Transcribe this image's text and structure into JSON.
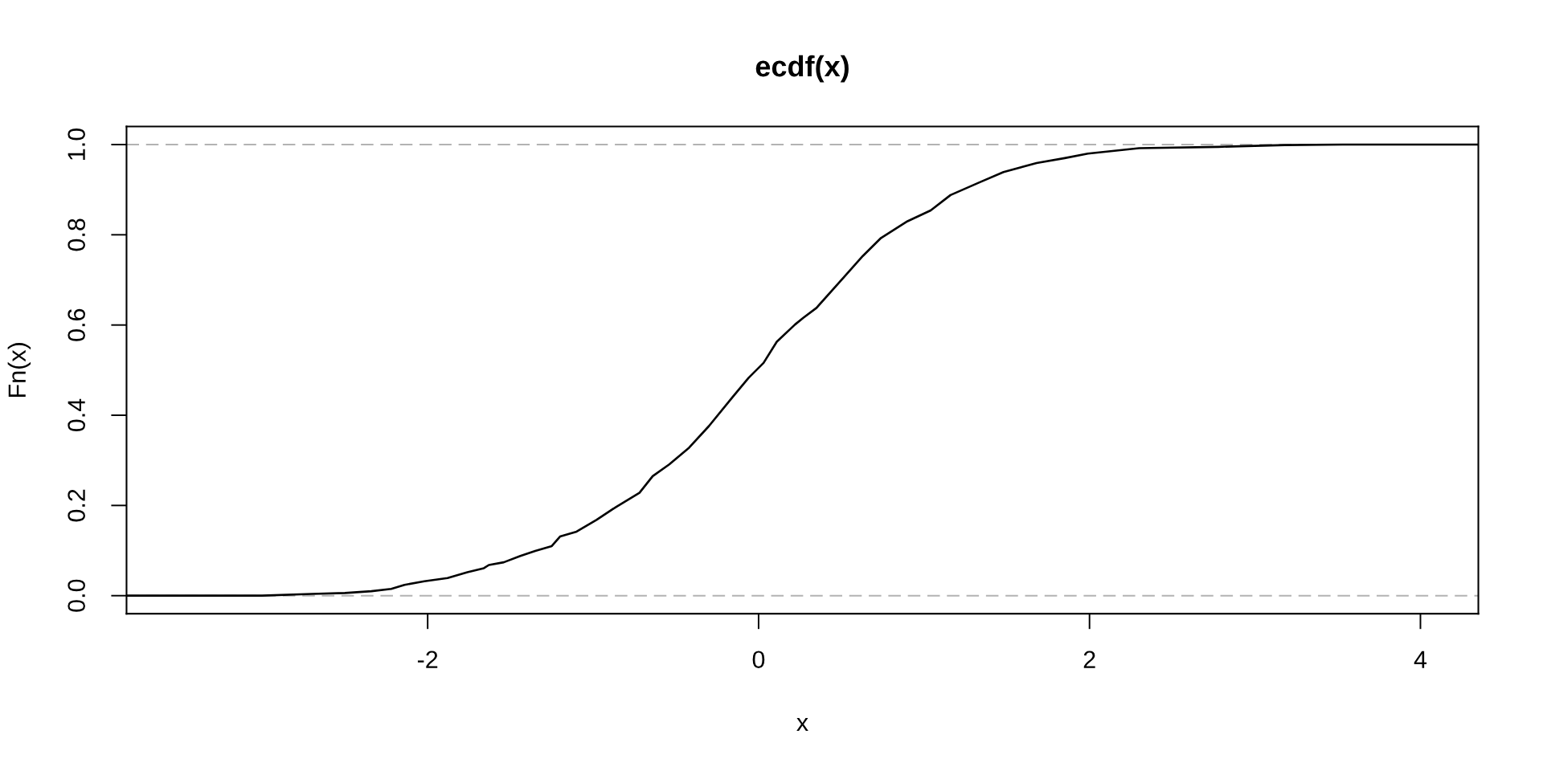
{
  "chart_data": {
    "type": "line",
    "title": "ecdf(x)",
    "xlabel": "x",
    "ylabel": "Fn(x)",
    "x": [
      -3.82,
      -3.0,
      -2.7,
      -2.5,
      -2.34,
      -2.22,
      -2.14,
      -2.02,
      -1.88,
      -1.76,
      -1.66,
      -1.63,
      -1.54,
      -1.44,
      -1.35,
      -1.25,
      -1.2,
      -1.1,
      -0.98,
      -0.86,
      -0.72,
      -0.64,
      -0.54,
      -0.42,
      -0.3,
      -0.16,
      -0.06,
      0.03,
      0.11,
      0.22,
      0.27,
      0.35,
      0.52,
      0.63,
      0.74,
      0.9,
      1.04,
      1.16,
      1.34,
      1.48,
      1.68,
      1.85,
      1.99,
      2.3,
      2.78,
      3.18,
      3.53,
      4.35
    ],
    "values": [
      0,
      0,
      0.004,
      0.006,
      0.01,
      0.015,
      0.024,
      0.032,
      0.039,
      0.052,
      0.061,
      0.068,
      0.074,
      0.088,
      0.099,
      0.11,
      0.131,
      0.142,
      0.168,
      0.197,
      0.228,
      0.265,
      0.291,
      0.328,
      0.376,
      0.439,
      0.483,
      0.516,
      0.563,
      0.601,
      0.616,
      0.638,
      0.708,
      0.753,
      0.793,
      0.83,
      0.854,
      0.888,
      0.917,
      0.939,
      0.959,
      0.97,
      0.98,
      0.992,
      0.995,
      0.999,
      1,
      1
    ],
    "color": "#000000",
    "line_style": "solid",
    "xlim": [
      -3.82,
      4.35
    ],
    "ylim": [
      -0.04,
      1.04
    ],
    "xticks": [
      -2,
      0,
      2,
      4
    ],
    "yticks": [
      {
        "value": 0,
        "label": "0.0"
      },
      {
        "value": 0.2,
        "label": "0.2"
      },
      {
        "value": 0.4,
        "label": "0.4"
      },
      {
        "value": 0.6,
        "label": "0.6"
      },
      {
        "value": 0.8,
        "label": "0.8"
      },
      {
        "value": 1,
        "label": "1.0"
      }
    ],
    "ref_lines": [
      {
        "axis": "y",
        "value": 0,
        "color": "#b3b3b3",
        "line_style": "dashed"
      },
      {
        "axis": "y",
        "value": 1,
        "color": "#b3b3b3",
        "line_style": "dashed"
      }
    ]
  }
}
